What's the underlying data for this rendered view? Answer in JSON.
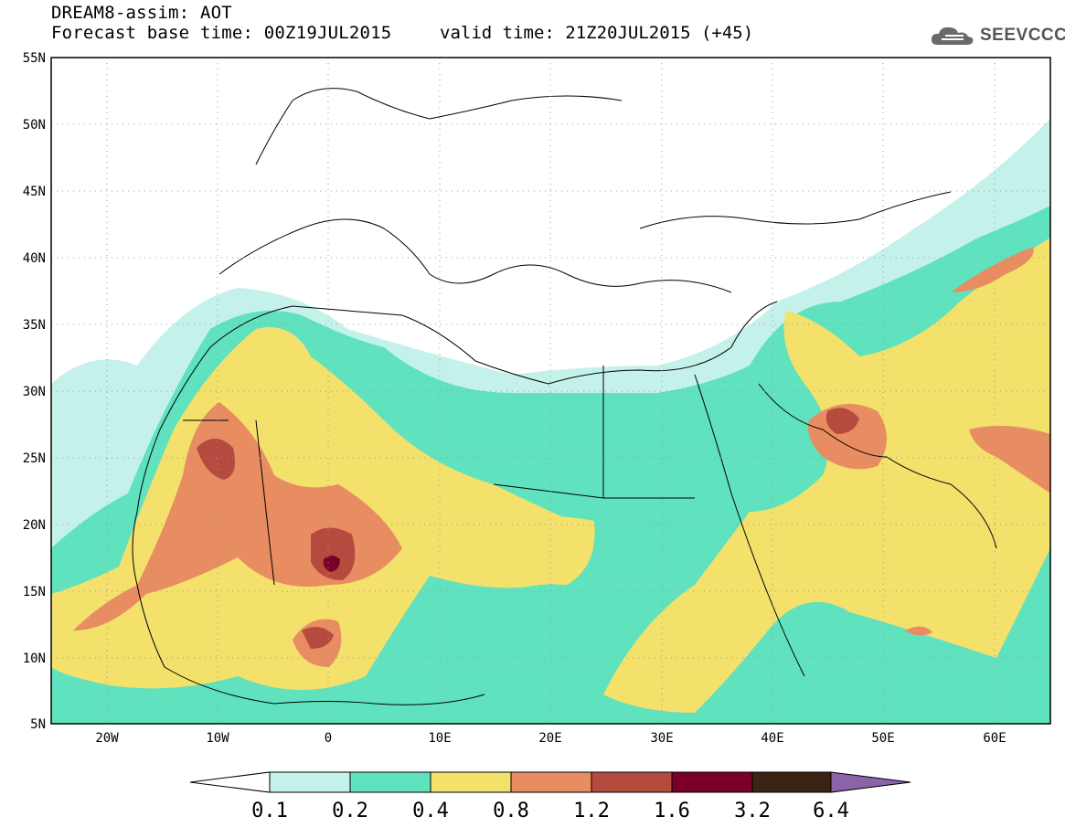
{
  "header": {
    "title_line1": "DREAM8-assim: AOT",
    "title_line2": "Forecast base time: 00Z19JUL2015",
    "valid_time": "valid time: 21Z20JUL2015 (+45)"
  },
  "logo": {
    "text": "SEEVCCC",
    "icon": "cloud-icon"
  },
  "map": {
    "field": "AOT",
    "region": "North Africa, Mediterranean, Middle East",
    "lat_labels": [
      "55N",
      "50N",
      "45N",
      "40N",
      "35N",
      "30N",
      "25N",
      "20N",
      "15N",
      "10N",
      "5N"
    ],
    "lon_labels": [
      "20W",
      "10W",
      "0",
      "10E",
      "20E",
      "30E",
      "40E",
      "50E",
      "60E"
    ],
    "lat_range": [
      5,
      55
    ],
    "lon_range": [
      -25,
      65
    ],
    "grid": "dotted"
  },
  "colorbar": {
    "labels": [
      "0.1",
      "0.2",
      "0.4",
      "0.8",
      "1.2",
      "1.6",
      "3.2",
      "6.4"
    ],
    "colors": [
      "#ffffff",
      "#c4f2ea",
      "#5fe2bd",
      "#f3e16c",
      "#e88c62",
      "#b54b3f",
      "#7a0027",
      "#3b2413",
      "#8a63a8"
    ]
  }
}
